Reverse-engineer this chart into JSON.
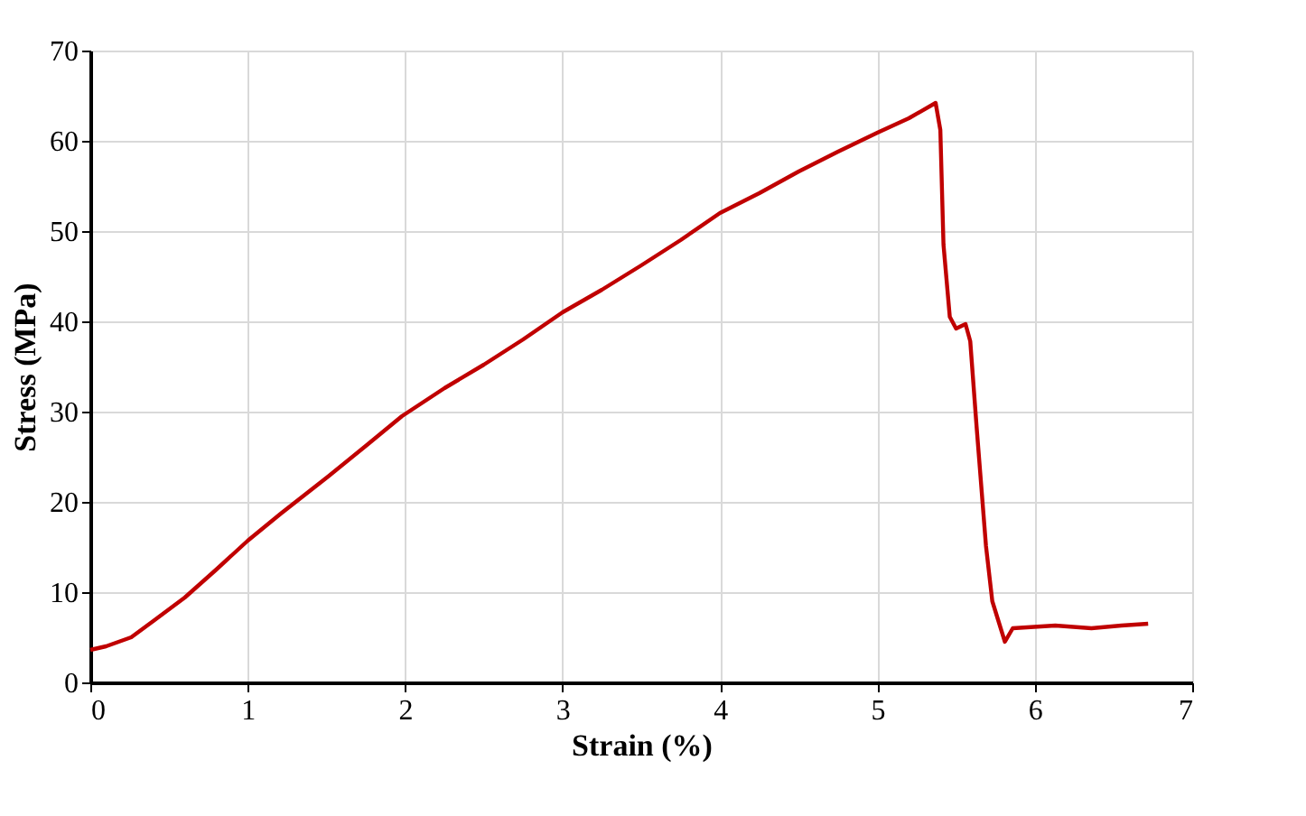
{
  "chart_data": {
    "type": "line",
    "xlabel": "Strain (%)",
    "ylabel": "Stress (MPa)",
    "xlim": [
      0,
      7
    ],
    "ylim": [
      0,
      70
    ],
    "xticks": [
      0,
      1,
      2,
      3,
      4,
      5,
      6,
      7
    ],
    "yticks": [
      0,
      10,
      20,
      30,
      40,
      50,
      60,
      70
    ],
    "grid": true,
    "marker": "none",
    "line_style": "solid",
    "series": [
      {
        "color": "#c00000",
        "x": [
          0,
          0.1,
          0.26,
          0.4,
          0.6,
          0.8,
          1.0,
          1.21,
          1.51,
          1.75,
          1.98,
          2.25,
          2.5,
          2.75,
          3.0,
          3.25,
          3.5,
          3.75,
          4.0,
          4.25,
          4.5,
          4.75,
          5.0,
          5.2,
          5.37,
          5.4,
          5.42,
          5.46,
          5.5,
          5.56,
          5.59,
          5.63,
          5.69,
          5.73,
          5.81,
          5.86,
          6.13,
          6.36,
          6.55,
          6.72
        ],
        "values": [
          3.6,
          4.0,
          5.0,
          6.8,
          9.4,
          12.5,
          15.7,
          18.7,
          22.8,
          26.2,
          29.5,
          32.6,
          35.2,
          38.0,
          41.0,
          43.5,
          46.2,
          49.0,
          52.0,
          54.2,
          56.6,
          58.8,
          60.9,
          62.5,
          64.2,
          61.2,
          48.5,
          40.5,
          39.2,
          39.7,
          37.8,
          28.4,
          15.1,
          9.0,
          4.5,
          6.0,
          6.3,
          6.0,
          6.3,
          6.5
        ]
      }
    ]
  }
}
